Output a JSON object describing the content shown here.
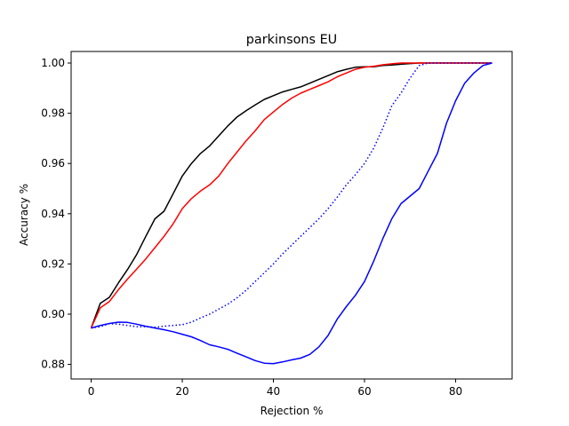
{
  "chart_data": {
    "type": "line",
    "title": "parkinsons EU",
    "xlabel": "Rejection %",
    "ylabel": "Accuracy %",
    "xlim": [
      -4.4,
      92.4
    ],
    "ylim": [
      0.8742,
      1.0046
    ],
    "xticks": [
      0,
      20,
      40,
      60,
      80
    ],
    "yticks": [
      0.88,
      0.9,
      0.92,
      0.94,
      0.96,
      0.98,
      1.0
    ],
    "ytick_labels": [
      "0.88",
      "0.90",
      "0.92",
      "0.94",
      "0.96",
      "0.98",
      "1.00"
    ],
    "grid": false,
    "legend": "none",
    "series": [
      {
        "color": "#000000",
        "style": "solid",
        "x": [
          0,
          2,
          4,
          6,
          8,
          10,
          12,
          14,
          16,
          18,
          20,
          22,
          24,
          26,
          28,
          30,
          32,
          34,
          36,
          38,
          40,
          42,
          44,
          46,
          48,
          50,
          52,
          54,
          56,
          58,
          60,
          62,
          64,
          66,
          68,
          70,
          72,
          74,
          76,
          78,
          80,
          82,
          84,
          86,
          88
        ],
        "y": [
          0.8945,
          0.9043,
          0.9067,
          0.9125,
          0.9178,
          0.9238,
          0.931,
          0.938,
          0.941,
          0.948,
          0.955,
          0.96,
          0.964,
          0.967,
          0.971,
          0.975,
          0.9785,
          0.981,
          0.9833,
          0.9855,
          0.987,
          0.9885,
          0.9895,
          0.9905,
          0.992,
          0.9935,
          0.995,
          0.9965,
          0.9975,
          0.9983,
          0.9985,
          0.9985,
          0.999,
          0.9992,
          0.9995,
          0.9998,
          1.0,
          1.0,
          1.0,
          1.0,
          1.0,
          1.0,
          1.0,
          1.0,
          1.0
        ]
      },
      {
        "color": "#ff0000",
        "style": "solid",
        "x": [
          0,
          2,
          4,
          6,
          8,
          10,
          12,
          14,
          16,
          18,
          20,
          22,
          24,
          26,
          28,
          30,
          32,
          34,
          36,
          38,
          40,
          42,
          44,
          46,
          48,
          50,
          52,
          54,
          56,
          58,
          60,
          62,
          64,
          66,
          68,
          70,
          72,
          74,
          76,
          78,
          80,
          82,
          84,
          86,
          88
        ],
        "y": [
          0.8945,
          0.9025,
          0.905,
          0.9098,
          0.914,
          0.918,
          0.922,
          0.9265,
          0.931,
          0.936,
          0.942,
          0.946,
          0.949,
          0.9515,
          0.955,
          0.96,
          0.9645,
          0.969,
          0.973,
          0.9775,
          0.9805,
          0.9835,
          0.986,
          0.988,
          0.9895,
          0.991,
          0.9925,
          0.9945,
          0.996,
          0.9975,
          0.9983,
          0.9987,
          0.9993,
          0.9997,
          1.0,
          1.0,
          1.0,
          1.0,
          1.0,
          1.0,
          1.0,
          1.0,
          1.0,
          1.0,
          1.0
        ]
      },
      {
        "color": "#0000ff",
        "style": "dotted",
        "x": [
          0,
          2,
          4,
          6,
          8,
          10,
          12,
          14,
          16,
          18,
          20,
          22,
          24,
          26,
          28,
          30,
          32,
          34,
          36,
          38,
          40,
          42,
          44,
          46,
          48,
          50,
          52,
          54,
          56,
          58,
          60,
          62,
          64,
          66,
          68,
          70,
          72,
          74,
          76,
          78,
          80,
          82,
          84,
          86,
          88
        ],
        "y": [
          0.8945,
          0.895,
          0.8962,
          0.896,
          0.8955,
          0.895,
          0.895,
          0.8948,
          0.8952,
          0.8955,
          0.8958,
          0.8968,
          0.8985,
          0.9,
          0.902,
          0.904,
          0.9065,
          0.9095,
          0.913,
          0.9165,
          0.92,
          0.924,
          0.9275,
          0.931,
          0.9345,
          0.938,
          0.942,
          0.9465,
          0.9515,
          0.9555,
          0.96,
          0.966,
          0.974,
          0.983,
          0.988,
          0.994,
          0.999,
          1.0,
          1.0,
          1.0,
          1.0,
          1.0,
          1.0,
          1.0,
          1.0
        ]
      },
      {
        "color": "#0000ff",
        "style": "solid",
        "x": [
          0,
          2,
          4,
          6,
          8,
          10,
          12,
          14,
          16,
          18,
          20,
          22,
          24,
          26,
          28,
          30,
          32,
          34,
          36,
          38,
          40,
          42,
          44,
          46,
          48,
          50,
          52,
          54,
          56,
          58,
          60,
          62,
          64,
          66,
          68,
          70,
          72,
          74,
          76,
          78,
          80,
          82,
          84,
          86,
          88
        ],
        "y": [
          0.8945,
          0.8955,
          0.8963,
          0.8968,
          0.8967,
          0.896,
          0.8952,
          0.8945,
          0.8938,
          0.893,
          0.892,
          0.891,
          0.8895,
          0.8878,
          0.887,
          0.886,
          0.8845,
          0.883,
          0.8815,
          0.8805,
          0.8803,
          0.881,
          0.8818,
          0.8825,
          0.884,
          0.887,
          0.8915,
          0.898,
          0.903,
          0.9075,
          0.913,
          0.921,
          0.93,
          0.938,
          0.944,
          0.947,
          0.95,
          0.957,
          0.964,
          0.976,
          0.985,
          0.992,
          0.996,
          0.999,
          1.0
        ]
      }
    ]
  }
}
